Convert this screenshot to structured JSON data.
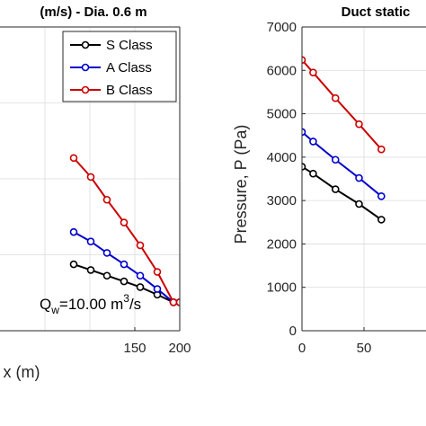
{
  "colors": {
    "s_class": "#000000",
    "a_class": "#0000cc",
    "b_class": "#cc0000"
  },
  "chart_data": [
    {
      "type": "line",
      "title": "(m/s) - Dia. 0.6 m",
      "xlabel": "x (m)",
      "ylabel": "",
      "xlim": [
        0,
        200
      ],
      "ylim": [
        0,
        8
      ],
      "xticks": [
        150,
        200
      ],
      "xtick_labels": [
        "150",
        "200"
      ],
      "grid": true,
      "legend": {
        "placement": "top-right",
        "entries": [
          "S Class",
          "A Class",
          "B Class"
        ]
      },
      "annotation": {
        "prefix": "Q",
        "sub": "w",
        "mid": "=10.00 m",
        "sup": "3",
        "suffix": "/s"
      },
      "series": [
        {
          "name": "S Class",
          "color": "#000000",
          "x": [
            82,
            101,
            119,
            138,
            156,
            175,
            193,
            200
          ],
          "y": [
            1.75,
            1.6,
            1.45,
            1.3,
            1.15,
            0.95,
            0.75,
            0.75
          ]
        },
        {
          "name": "A Class",
          "color": "#0000cc",
          "x": [
            82,
            101,
            119,
            138,
            156,
            175,
            193,
            200
          ],
          "y": [
            2.6,
            2.35,
            2.05,
            1.75,
            1.45,
            1.1,
            0.75,
            0.75
          ]
        },
        {
          "name": "B Class",
          "color": "#cc0000",
          "x": [
            82,
            101,
            119,
            138,
            156,
            175,
            193,
            200
          ],
          "y": [
            4.55,
            4.05,
            3.45,
            2.85,
            2.25,
            1.55,
            0.75,
            0.75
          ]
        }
      ]
    },
    {
      "type": "line",
      "title": "Duct static",
      "xlabel": "",
      "ylabel": "Pressure, P (Pa)",
      "xlim": [
        0,
        100
      ],
      "ylim": [
        0,
        7000
      ],
      "yticks": [
        0,
        1000,
        2000,
        3000,
        4000,
        5000,
        6000,
        7000
      ],
      "ytick_labels": [
        "0",
        "1000",
        "2000",
        "3000",
        "4000",
        "5000",
        "6000",
        "7000"
      ],
      "xticks": [
        0,
        50
      ],
      "xtick_labels": [
        "0",
        "50"
      ],
      "grid": true,
      "series": [
        {
          "name": "S Class",
          "color": "#000000",
          "x": [
            0,
            9,
            27,
            46,
            64
          ],
          "y": [
            3780,
            3620,
            3260,
            2920,
            2560
          ]
        },
        {
          "name": "A Class",
          "color": "#0000cc",
          "x": [
            0,
            9,
            27,
            46,
            64
          ],
          "y": [
            4580,
            4360,
            3940,
            3520,
            3100
          ]
        },
        {
          "name": "B Class",
          "color": "#cc0000",
          "x": [
            0,
            9,
            27,
            46,
            64
          ],
          "y": [
            6240,
            5950,
            5360,
            4760,
            4180
          ]
        }
      ]
    }
  ]
}
